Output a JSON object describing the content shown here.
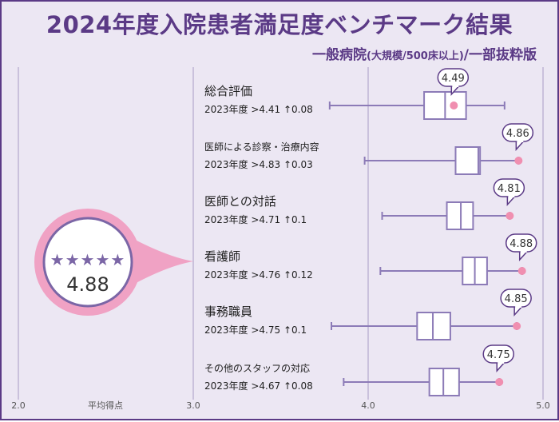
{
  "header": {
    "title": "2024年度入院患者満足度ベンチマーク結果",
    "subtitle_main": "一般病院",
    "subtitle_paren": "(大規模/500床以上)",
    "subtitle_tail": "/一部抜粋版"
  },
  "featured": {
    "stars": "★★★★★",
    "score": "4.88"
  },
  "colors": {
    "accent": "#5b3a86",
    "box": "#8c7bb7",
    "point": "#f08fb0",
    "highlight": "#f0a2c4",
    "background": "#ece7f3"
  },
  "chart_data": {
    "type": "boxplot",
    "xlim": [
      2.0,
      5.0
    ],
    "xticks": [
      "2.0",
      "3.0",
      "4.0",
      "5.0"
    ],
    "xlabel": "平均得点",
    "grid": true,
    "categories": [
      {
        "name": "総合評価",
        "sub": "2023年度 >4.41 ↑0.08",
        "score": 4.49,
        "score_label": "4.49",
        "min": 3.78,
        "q1": 4.32,
        "median": 4.44,
        "q3": 4.56,
        "max": 4.78
      },
      {
        "name": "医師による診察・治療内容",
        "sub": "2023年度 >4.83 ↑0.03",
        "score": 4.86,
        "score_label": "4.86",
        "min": 3.98,
        "q1": 4.5,
        "median": 4.63,
        "q3": 4.64,
        "max": 4.86
      },
      {
        "name": "医師との対話",
        "sub": "2023年度 >4.71 ↑0.1",
        "score": 4.81,
        "score_label": "4.81",
        "min": 4.08,
        "q1": 4.45,
        "median": 4.53,
        "q3": 4.6,
        "max": 4.81
      },
      {
        "name": "看護師",
        "sub": "2023年度 >4.76 ↑0.12",
        "score": 4.88,
        "score_label": "4.88",
        "min": 4.07,
        "q1": 4.54,
        "median": 4.61,
        "q3": 4.68,
        "max": 4.88
      },
      {
        "name": "事務職員",
        "sub": "2023年度 >4.75 ↑0.1",
        "score": 4.85,
        "score_label": "4.85",
        "min": 3.79,
        "q1": 4.28,
        "median": 4.37,
        "q3": 4.47,
        "max": 4.85
      },
      {
        "name": "その他のスタッフの対応",
        "sub": "2023年度 >4.67 ↑0.08",
        "score": 4.75,
        "score_label": "4.75",
        "min": 3.86,
        "q1": 4.35,
        "median": 4.43,
        "q3": 4.52,
        "max": 4.75
      }
    ]
  }
}
